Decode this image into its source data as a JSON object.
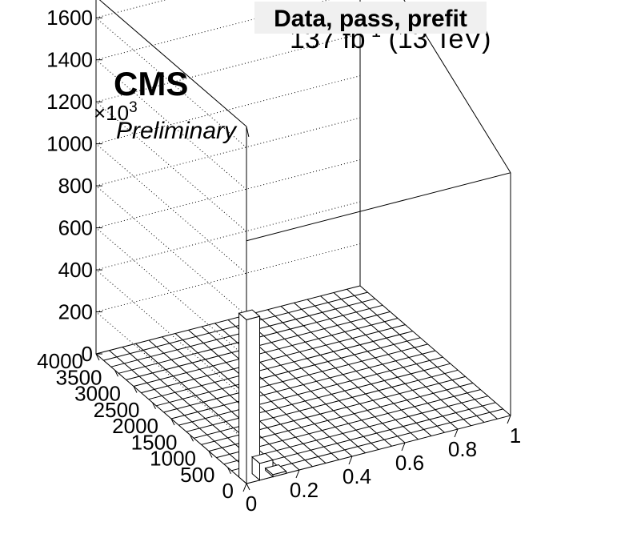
{
  "header": {
    "title": "Data, pass, prefit",
    "lumi": "137 fb",
    "lumi_sup": "-1",
    "energy": "(13 TeV)"
  },
  "labels": {
    "experiment": "CMS",
    "status": "Preliminary",
    "z_multiplier": "×10",
    "z_multiplier_exp": "3"
  },
  "chart_data": {
    "type": "lego",
    "title": "Data, pass, prefit",
    "x_ticks": [
      "0",
      "0.2",
      "0.4",
      "0.6",
      "0.8",
      "1"
    ],
    "y_ticks": [
      "0",
      "500",
      "1000",
      "1500",
      "2000",
      "2500",
      "3000",
      "3500",
      "4000"
    ],
    "z_ticks": [
      "0",
      "200",
      "400",
      "600",
      "800",
      "1000",
      "1200",
      "1400",
      "1600"
    ],
    "x_range": [
      0,
      1
    ],
    "y_range": [
      0,
      4000
    ],
    "z_range": [
      0,
      1700000
    ],
    "z_scale_factor": 1000,
    "nbins_x": 20,
    "nbins_y": 20,
    "bars": [
      {
        "x_bin": [
          0,
          0.05
        ],
        "y_bin": [
          0,
          200
        ],
        "value": 780000
      },
      {
        "x_bin": [
          0.05,
          0.1
        ],
        "y_bin": [
          0,
          200
        ],
        "value": 80000
      },
      {
        "x_bin": [
          0.1,
          0.15
        ],
        "y_bin": [
          0,
          200
        ],
        "value": 10000
      }
    ],
    "grid": true
  }
}
